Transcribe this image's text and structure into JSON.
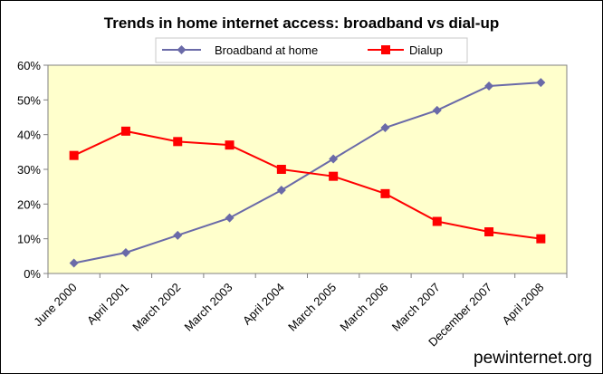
{
  "chart_data": {
    "type": "line",
    "title": "Trends in home internet access: broadband vs dial-up",
    "categories": [
      "June 2000",
      "April 2001",
      "March 2002",
      "March 2003",
      "April 2004",
      "March 2005",
      "March 2006",
      "March 2007",
      "December 2007",
      "April 2008"
    ],
    "series": [
      {
        "name": "Broadband at home",
        "values": [
          3,
          6,
          11,
          16,
          24,
          33,
          42,
          47,
          54,
          55
        ],
        "color": "#6a6aa8",
        "marker": "diamond"
      },
      {
        "name": "Dialup",
        "values": [
          34,
          41,
          38,
          37,
          30,
          28,
          23,
          15,
          12,
          10
        ],
        "color": "#ff0000",
        "marker": "square"
      }
    ],
    "ylim": [
      0,
      60
    ],
    "yticks": [
      "0%",
      "10%",
      "20%",
      "30%",
      "40%",
      "50%",
      "60%"
    ],
    "plot_background": "#ffffcc",
    "grid": false,
    "legend_position": "top-center"
  },
  "credit": "pewinternet.org"
}
